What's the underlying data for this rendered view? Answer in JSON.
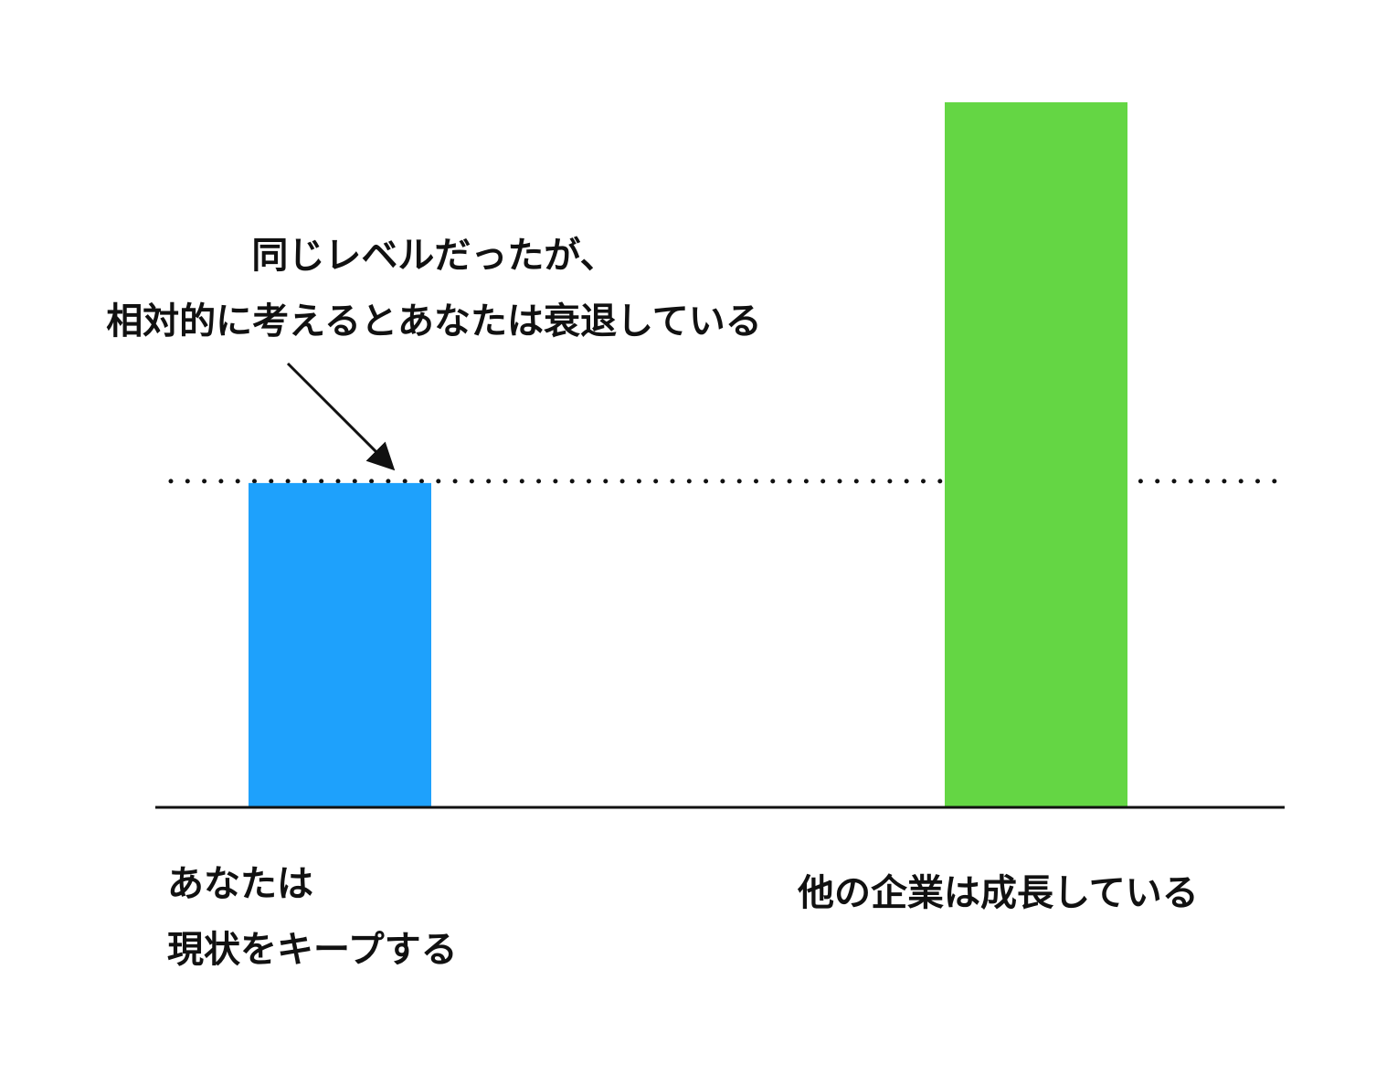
{
  "chart_data": {
    "type": "bar",
    "annotation": "同じレベルだったが、\n相対的に考えるとあなたは衰退している",
    "categories": [
      "あなたは\n現状をキープする",
      "他の企業は成長している"
    ],
    "values": [
      46,
      100
    ],
    "colors": [
      "#1ea1fc",
      "#64d644"
    ],
    "reference_line": true
  }
}
